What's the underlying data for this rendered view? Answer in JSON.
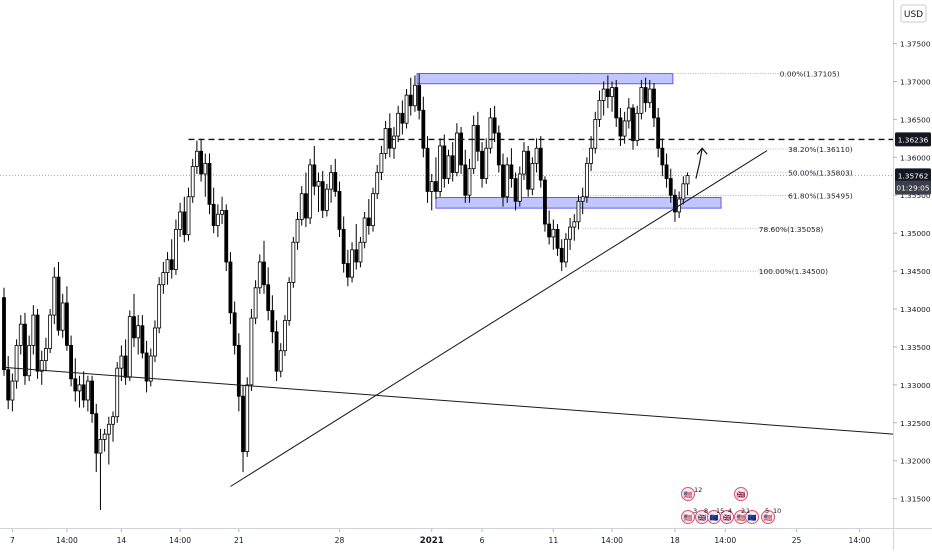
{
  "chart_data": {
    "type": "candlestick",
    "currency": "USD",
    "ylim": [
      1.3135,
      1.3785
    ],
    "xlim": [
      0,
      212
    ],
    "y_ticks": [
      "1.37500",
      "1.37000",
      "1.36500",
      "1.36000",
      "1.35500",
      "1.35000",
      "1.34500",
      "1.34000",
      "1.33500",
      "1.33000",
      "1.32500",
      "1.32000",
      "1.31500"
    ],
    "x_ticks": [
      {
        "x": 2,
        "label": "7"
      },
      {
        "x": 15,
        "label": "14:00"
      },
      {
        "x": 28,
        "label": "14"
      },
      {
        "x": 42,
        "label": "14:00"
      },
      {
        "x": 56,
        "label": "21"
      },
      {
        "x": 80,
        "label": "28"
      },
      {
        "x": 102,
        "label": "2021"
      },
      {
        "x": 114,
        "label": "6"
      },
      {
        "x": 131,
        "label": "11"
      },
      {
        "x": 145,
        "label": "14:00"
      },
      {
        "x": 160,
        "label": "18"
      },
      {
        "x": 172,
        "label": "14:00"
      },
      {
        "x": 189,
        "label": "25"
      },
      {
        "x": 204,
        "label": "14:00"
      }
    ],
    "price_marks": [
      {
        "label": "1.36236",
        "value": 1.36236,
        "style": "dark"
      },
      {
        "label": "1.35762",
        "value": 1.35762,
        "style": "dark"
      },
      {
        "label": "01:29:05",
        "value": 1.356,
        "style": "gray"
      }
    ],
    "fib_levels": [
      {
        "label": "0.00%(1.37105)",
        "value": 1.37105,
        "label_x": 185
      },
      {
        "label": "38.20%(1.36110)",
        "value": 1.3611,
        "label_x": 187
      },
      {
        "label": "50.00%(1.35803)",
        "value": 1.35803,
        "label_x": 187
      },
      {
        "label": "61.80%(1.35495)",
        "value": 1.35495,
        "label_x": 187
      },
      {
        "label": "78.60%(1.35058)",
        "value": 1.35058,
        "label_x": 180
      },
      {
        "label": "100.00%(1.34500)",
        "value": 1.345,
        "label_x": 180
      }
    ],
    "fib_x_range": [
      138,
      189
    ],
    "resistance_line": {
      "value": 1.36236,
      "x1": 44,
      "x2": 212
    },
    "zones": [
      {
        "x1": 98.5,
        "x2": 159.5,
        "y1": 1.37105,
        "y2": 1.3697
      },
      {
        "x1": 103,
        "x2": 171,
        "y1": 1.3547,
        "y2": 1.3533
      }
    ],
    "trendlines": [
      {
        "x1": 54,
        "y1": 1.3166,
        "x2": 182,
        "y2": 1.3609
      },
      {
        "x1": 0,
        "y1": 1.3323,
        "x2": 216,
        "y2": 1.3235
      }
    ],
    "projection_arrow": {
      "x1": 165,
      "y1": 1.3572,
      "x2": 166.5,
      "y2": 1.3612
    },
    "calendar_icons": {
      "flags": [
        "🇺🇸",
        "🇬🇧",
        "🇪🇺"
      ],
      "counts": [
        "12",
        "3",
        "8",
        "15",
        "4",
        "2",
        "1",
        "5",
        "10"
      ]
    },
    "candles": [
      [
        0,
        1.3415,
        1.3428,
        1.3312,
        1.332
      ],
      [
        1,
        1.332,
        1.3338,
        1.3268,
        1.328
      ],
      [
        2,
        1.328,
        1.3315,
        1.3265,
        1.3305
      ],
      [
        3,
        1.3305,
        1.336,
        1.3295,
        1.3352
      ],
      [
        4,
        1.3352,
        1.3392,
        1.334,
        1.338
      ],
      [
        5,
        1.338,
        1.3395,
        1.33,
        1.3312
      ],
      [
        6,
        1.3312,
        1.3365,
        1.3305,
        1.3352
      ],
      [
        7,
        1.3352,
        1.3405,
        1.334,
        1.3392
      ],
      [
        8,
        1.3392,
        1.34,
        1.3308,
        1.3318
      ],
      [
        9,
        1.3318,
        1.3345,
        1.33,
        1.3332
      ],
      [
        10,
        1.3332,
        1.3362,
        1.3318,
        1.3348
      ],
      [
        11,
        1.3348,
        1.34,
        1.3342,
        1.3392
      ],
      [
        12,
        1.3392,
        1.3455,
        1.338,
        1.3442
      ],
      [
        13,
        1.3442,
        1.3462,
        1.3365,
        1.3372
      ],
      [
        14,
        1.3372,
        1.342,
        1.3362,
        1.3408
      ],
      [
        15,
        1.3408,
        1.343,
        1.3345,
        1.3352
      ],
      [
        16,
        1.3352,
        1.3365,
        1.3298,
        1.3308
      ],
      [
        17,
        1.3308,
        1.3335,
        1.3278,
        1.3292
      ],
      [
        18,
        1.3292,
        1.3312,
        1.327,
        1.33
      ],
      [
        19,
        1.33,
        1.3318,
        1.327,
        1.328
      ],
      [
        20,
        1.328,
        1.3312,
        1.3265,
        1.3305
      ],
      [
        21,
        1.3305,
        1.3312,
        1.325,
        1.3262
      ],
      [
        22,
        1.3262,
        1.3275,
        1.3185,
        1.321
      ],
      [
        23,
        1.321,
        1.3242,
        1.3135,
        1.3228
      ],
      [
        24,
        1.3228,
        1.3242,
        1.3212,
        1.3235
      ],
      [
        25,
        1.3235,
        1.3258,
        1.3195,
        1.3248
      ],
      [
        26,
        1.3248,
        1.3265,
        1.3225,
        1.3258
      ],
      [
        27,
        1.3258,
        1.333,
        1.325,
        1.3322
      ],
      [
        28,
        1.3322,
        1.3352,
        1.3305,
        1.3338
      ],
      [
        29,
        1.3338,
        1.336,
        1.33,
        1.331
      ],
      [
        30,
        1.331,
        1.3398,
        1.3305,
        1.339
      ],
      [
        31,
        1.339,
        1.342,
        1.335,
        1.3362
      ],
      [
        32,
        1.3362,
        1.3392,
        1.334,
        1.3378
      ],
      [
        33,
        1.3378,
        1.3392,
        1.3335,
        1.3342
      ],
      [
        34,
        1.3342,
        1.3358,
        1.329,
        1.3305
      ],
      [
        35,
        1.3305,
        1.3348,
        1.3298,
        1.3338
      ],
      [
        36,
        1.3338,
        1.3385,
        1.333,
        1.3375
      ],
      [
        37,
        1.3375,
        1.3442,
        1.3368,
        1.3432
      ],
      [
        38,
        1.3432,
        1.3462,
        1.342,
        1.3448
      ],
      [
        39,
        1.3448,
        1.3475,
        1.3432,
        1.3465
      ],
      [
        40,
        1.3465,
        1.3492,
        1.344,
        1.3452
      ],
      [
        41,
        1.3452,
        1.3518,
        1.3445,
        1.3505
      ],
      [
        42,
        1.3505,
        1.354,
        1.3495,
        1.3528
      ],
      [
        43,
        1.3528,
        1.3548,
        1.3488,
        1.3498
      ],
      [
        44,
        1.3498,
        1.356,
        1.349,
        1.3548
      ],
      [
        45,
        1.3548,
        1.3598,
        1.354,
        1.3588
      ],
      [
        46,
        1.3588,
        1.3622,
        1.3578,
        1.3608
      ],
      [
        47,
        1.3608,
        1.3624,
        1.3568,
        1.3578
      ],
      [
        48,
        1.3578,
        1.3605,
        1.3548,
        1.3592
      ],
      [
        49,
        1.3592,
        1.3605,
        1.3525,
        1.3538
      ],
      [
        50,
        1.3538,
        1.356,
        1.35,
        1.351
      ],
      [
        51,
        1.351,
        1.3538,
        1.3495,
        1.3525
      ],
      [
        52,
        1.3525,
        1.3548,
        1.3512,
        1.353
      ],
      [
        53,
        1.353,
        1.3538,
        1.345,
        1.3462
      ],
      [
        54,
        1.3462,
        1.3475,
        1.338,
        1.3395
      ],
      [
        55,
        1.3395,
        1.341,
        1.334,
        1.3352
      ],
      [
        56,
        1.3352,
        1.3368,
        1.3265,
        1.3285
      ],
      [
        57,
        1.3285,
        1.33,
        1.3185,
        1.3212
      ],
      [
        58,
        1.3212,
        1.331,
        1.3205,
        1.33
      ],
      [
        59,
        1.33,
        1.34,
        1.3292,
        1.3388
      ],
      [
        60,
        1.3388,
        1.3438,
        1.338,
        1.3428
      ],
      [
        61,
        1.3428,
        1.3472,
        1.342,
        1.3462
      ],
      [
        62,
        1.3462,
        1.349,
        1.342,
        1.3432
      ],
      [
        63,
        1.3432,
        1.3455,
        1.3385,
        1.3398
      ],
      [
        64,
        1.3398,
        1.3418,
        1.3355,
        1.337
      ],
      [
        65,
        1.337,
        1.3385,
        1.3305,
        1.3318
      ],
      [
        66,
        1.3318,
        1.3355,
        1.331,
        1.3345
      ],
      [
        67,
        1.3345,
        1.3392,
        1.3338,
        1.3385
      ],
      [
        68,
        1.3385,
        1.3442,
        1.3378,
        1.3435
      ],
      [
        69,
        1.3435,
        1.3495,
        1.3428,
        1.3488
      ],
      [
        70,
        1.3488,
        1.3528,
        1.3478,
        1.3518
      ],
      [
        71,
        1.3518,
        1.3562,
        1.351,
        1.3552
      ],
      [
        72,
        1.3552,
        1.358,
        1.3508,
        1.352
      ],
      [
        73,
        1.352,
        1.3598,
        1.3512,
        1.359
      ],
      [
        74,
        1.359,
        1.3615,
        1.355,
        1.3562
      ],
      [
        75,
        1.3562,
        1.358,
        1.3528,
        1.3568
      ],
      [
        76,
        1.3568,
        1.3582,
        1.352,
        1.353
      ],
      [
        77,
        1.353,
        1.3565,
        1.3522,
        1.3558
      ],
      [
        78,
        1.3558,
        1.359,
        1.354,
        1.358
      ],
      [
        79,
        1.358,
        1.3598,
        1.3548,
        1.3555
      ],
      [
        80,
        1.3555,
        1.3568,
        1.3495,
        1.3505
      ],
      [
        81,
        1.3505,
        1.3522,
        1.3448,
        1.346
      ],
      [
        82,
        1.346,
        1.3478,
        1.343,
        1.3442
      ],
      [
        83,
        1.3442,
        1.3488,
        1.3435,
        1.3478
      ],
      [
        84,
        1.3478,
        1.3512,
        1.3452,
        1.3462
      ],
      [
        85,
        1.3462,
        1.3495,
        1.3455,
        1.3488
      ],
      [
        86,
        1.3488,
        1.3528,
        1.348,
        1.352
      ],
      [
        87,
        1.352,
        1.3545,
        1.3498,
        1.351
      ],
      [
        88,
        1.351,
        1.356,
        1.3502,
        1.3552
      ],
      [
        89,
        1.3552,
        1.359,
        1.3545,
        1.358
      ],
      [
        90,
        1.358,
        1.3615,
        1.357,
        1.3605
      ],
      [
        91,
        1.3605,
        1.3648,
        1.3598,
        1.3638
      ],
      [
        92,
        1.3638,
        1.3658,
        1.36,
        1.3612
      ],
      [
        93,
        1.3612,
        1.364,
        1.3598,
        1.3628
      ],
      [
        94,
        1.3628,
        1.3668,
        1.362,
        1.3658
      ],
      [
        95,
        1.3658,
        1.3675,
        1.363,
        1.3645
      ],
      [
        96,
        1.3645,
        1.369,
        1.3638,
        1.3682
      ],
      [
        97,
        1.3682,
        1.3705,
        1.3655,
        1.3668
      ],
      [
        98,
        1.3668,
        1.3708,
        1.366,
        1.3695
      ],
      [
        99,
        1.3695,
        1.371,
        1.365,
        1.3662
      ],
      [
        100,
        1.3662,
        1.368,
        1.36,
        1.3612
      ],
      [
        101,
        1.3612,
        1.3628,
        1.354,
        1.3555
      ],
      [
        102,
        1.3555,
        1.3578,
        1.353,
        1.3568
      ],
      [
        103,
        1.3568,
        1.36,
        1.3545,
        1.3555
      ],
      [
        104,
        1.3555,
        1.3625,
        1.3548,
        1.3615
      ],
      [
        105,
        1.3615,
        1.363,
        1.356,
        1.3572
      ],
      [
        106,
        1.3572,
        1.361,
        1.3565,
        1.3602
      ],
      [
        107,
        1.3602,
        1.362,
        1.3568,
        1.358
      ],
      [
        108,
        1.358,
        1.3645,
        1.3575,
        1.3632
      ],
      [
        109,
        1.3632,
        1.364,
        1.3578,
        1.359
      ],
      [
        110,
        1.359,
        1.361,
        1.354,
        1.355
      ],
      [
        111,
        1.355,
        1.3598,
        1.354,
        1.3585
      ],
      [
        112,
        1.3585,
        1.3655,
        1.3578,
        1.3642
      ],
      [
        113,
        1.3642,
        1.366,
        1.3595,
        1.3608
      ],
      [
        114,
        1.3608,
        1.362,
        1.356,
        1.3572
      ],
      [
        115,
        1.3572,
        1.3625,
        1.3565,
        1.3612
      ],
      [
        116,
        1.3612,
        1.3665,
        1.3605,
        1.3652
      ],
      [
        117,
        1.3652,
        1.3668,
        1.362,
        1.3632
      ],
      [
        118,
        1.3632,
        1.3642,
        1.358,
        1.359
      ],
      [
        119,
        1.359,
        1.3605,
        1.3535,
        1.3548
      ],
      [
        120,
        1.3548,
        1.36,
        1.354,
        1.359
      ],
      [
        121,
        1.359,
        1.3612,
        1.356,
        1.3572
      ],
      [
        122,
        1.3572,
        1.358,
        1.353,
        1.3542
      ],
      [
        123,
        1.3542,
        1.3588,
        1.3535,
        1.3578
      ],
      [
        124,
        1.3578,
        1.362,
        1.357,
        1.3608
      ],
      [
        125,
        1.3608,
        1.3615,
        1.3548,
        1.3558
      ],
      [
        126,
        1.3558,
        1.36,
        1.355,
        1.3592
      ],
      [
        127,
        1.3592,
        1.3625,
        1.358,
        1.3612
      ],
      [
        128,
        1.3612,
        1.3628,
        1.356,
        1.357
      ],
      [
        129,
        1.357,
        1.3575,
        1.3502,
        1.3512
      ],
      [
        130,
        1.3512,
        1.353,
        1.3485,
        1.3495
      ],
      [
        131,
        1.3495,
        1.3518,
        1.3478,
        1.3505
      ],
      [
        132,
        1.3505,
        1.3512,
        1.347,
        1.348
      ],
      [
        133,
        1.348,
        1.3492,
        1.345,
        1.3462
      ],
      [
        134,
        1.3462,
        1.35,
        1.3455,
        1.3492
      ],
      [
        135,
        1.3492,
        1.352,
        1.3478,
        1.3508
      ],
      [
        136,
        1.3508,
        1.3525,
        1.349,
        1.3515
      ],
      [
        137,
        1.3515,
        1.355,
        1.3505,
        1.3542
      ],
      [
        138,
        1.3542,
        1.356,
        1.3525,
        1.3548
      ],
      [
        139,
        1.3548,
        1.36,
        1.354,
        1.3592
      ],
      [
        140,
        1.3592,
        1.3628,
        1.3582,
        1.3612
      ],
      [
        141,
        1.3612,
        1.366,
        1.3605,
        1.365
      ],
      [
        142,
        1.365,
        1.3688,
        1.364,
        1.3675
      ],
      [
        143,
        1.3675,
        1.37,
        1.3655,
        1.369
      ],
      [
        144,
        1.369,
        1.3708,
        1.3665,
        1.368
      ],
      [
        145,
        1.368,
        1.37,
        1.366,
        1.3692
      ],
      [
        146,
        1.3692,
        1.3702,
        1.364,
        1.3652
      ],
      [
        147,
        1.3652,
        1.3665,
        1.3615,
        1.3628
      ],
      [
        148,
        1.3628,
        1.366,
        1.3618,
        1.3648
      ],
      [
        149,
        1.3648,
        1.3678,
        1.3638,
        1.3665
      ],
      [
        150,
        1.3665,
        1.367,
        1.361,
        1.3622
      ],
      [
        151,
        1.3622,
        1.3668,
        1.3615,
        1.3658
      ],
      [
        152,
        1.3658,
        1.3702,
        1.365,
        1.3692
      ],
      [
        153,
        1.3692,
        1.3705,
        1.366,
        1.3672
      ],
      [
        154,
        1.3672,
        1.3702,
        1.3665,
        1.369
      ],
      [
        155,
        1.369,
        1.3698,
        1.364,
        1.3652
      ],
      [
        156,
        1.3652,
        1.3665,
        1.36,
        1.3612
      ],
      [
        157,
        1.3612,
        1.3625,
        1.3575,
        1.359
      ],
      [
        158,
        1.359,
        1.3605,
        1.356,
        1.3572
      ],
      [
        159,
        1.3572,
        1.3585,
        1.354,
        1.355
      ],
      [
        160,
        1.355,
        1.3558,
        1.3515,
        1.3528
      ],
      [
        161,
        1.3528,
        1.3555,
        1.352,
        1.3545
      ],
      [
        162,
        1.3545,
        1.3575,
        1.3538,
        1.3565
      ],
      [
        163,
        1.3565,
        1.358,
        1.355,
        1.3576
      ]
    ]
  }
}
